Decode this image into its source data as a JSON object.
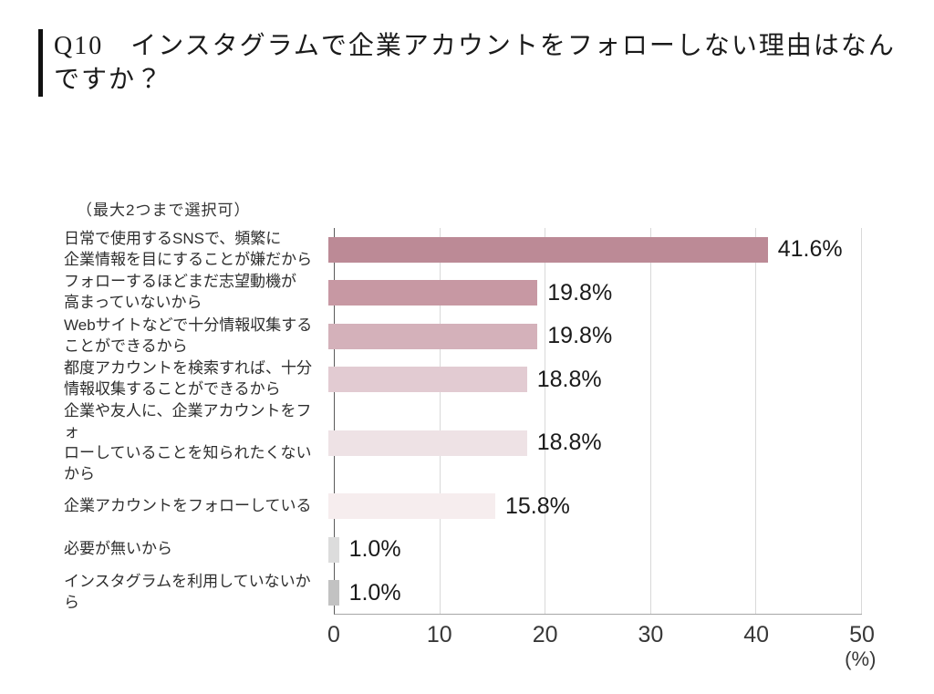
{
  "page": {
    "background_color": "#ffffff"
  },
  "header": {
    "title": "Q10　インスタグラムで企業アカウントをフォローしない理由はなんですか？",
    "accent_bar_color": "#111111"
  },
  "chart_data": {
    "type": "bar",
    "orientation": "horizontal",
    "note": "（最大2つまで選択可）",
    "categories": [
      "日常で使用するSNSで、頻繁に企業情報を目にすることが嫌だから",
      "フォローするほどまだ志望動機が高まっていないから",
      "Webサイトなどで十分情報収集することができるから",
      "都度アカウントを検索すれば、十分情報収集することができるから",
      "企業や友人に、企業アカウントをフォローしていることを知られたくないから",
      "企業アカウントをフォローしている",
      "必要が無いから",
      "インスタグラムを利用していないから"
    ],
    "label_lines": [
      [
        "日常で使用するSNSで、頻繁に",
        "企業情報を目にすることが嫌だから"
      ],
      [
        "フォローするほどまだ志望動機が",
        "高まっていないから"
      ],
      [
        "Webサイトなどで十分情報収集する",
        "ことができるから"
      ],
      [
        "都度アカウントを検索すれば、十分",
        "情報収集することができるから"
      ],
      [
        "企業や友人に、企業アカウントをフォ",
        "ローしていることを知られたくないから"
      ],
      [
        "企業アカウントをフォローしている"
      ],
      [
        "必要が無いから"
      ],
      [
        "インスタグラムを利用していないから"
      ]
    ],
    "values": [
      41.6,
      19.8,
      19.8,
      18.8,
      18.8,
      15.8,
      1.0,
      1.0
    ],
    "value_labels": [
      "41.6%",
      "19.8%",
      "19.8%",
      "18.8%",
      "18.8%",
      "15.8%",
      "1.0%",
      "1.0%"
    ],
    "bar_colors": [
      "#bc8a96",
      "#c798a3",
      "#d4b1ba",
      "#e2cbd2",
      "#eee2e5",
      "#f6edee",
      "#dcdcdc",
      "#c2c2c2"
    ],
    "xlim": [
      0,
      50
    ],
    "x_ticks": [
      0,
      10,
      20,
      30,
      40,
      50
    ],
    "x_tick_labels": [
      "0",
      "10",
      "20",
      "30",
      "40",
      "50"
    ],
    "x_unit": "(%)",
    "grid": true,
    "gridline_color": "#d9d9d9",
    "axis_color": "#595959"
  }
}
